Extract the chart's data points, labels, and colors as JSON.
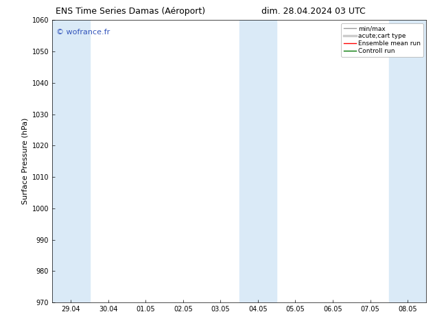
{
  "title_left": "ENS Time Series Damas (Aéroport)",
  "title_right": "dim. 28.04.2024 03 UTC",
  "ylabel": "Surface Pressure (hPa)",
  "ylim": [
    970,
    1060
  ],
  "yticks": [
    970,
    980,
    990,
    1000,
    1010,
    1020,
    1030,
    1040,
    1050,
    1060
  ],
  "xtick_labels": [
    "29.04",
    "30.04",
    "01.05",
    "02.05",
    "03.05",
    "04.05",
    "05.05",
    "06.05",
    "07.05",
    "08.05"
  ],
  "xtick_positions": [
    0,
    1,
    2,
    3,
    4,
    5,
    6,
    7,
    8,
    9
  ],
  "xlim": [
    -0.5,
    9.5
  ],
  "shaded_bands": [
    {
      "x_start": -0.5,
      "x_end": 0.5,
      "color": "#daeaf7"
    },
    {
      "x_start": 4.5,
      "x_end": 5.5,
      "color": "#daeaf7"
    },
    {
      "x_start": 8.5,
      "x_end": 9.5,
      "color": "#daeaf7"
    }
  ],
  "watermark_text": "© wofrance.fr",
  "watermark_color": "#3355bb",
  "bg_color": "#ffffff",
  "legend_items": [
    {
      "label": "min/max",
      "color": "#999999",
      "lw": 1.0,
      "ls": "-"
    },
    {
      "label": "acute;cart type",
      "color": "#cccccc",
      "lw": 2.5,
      "ls": "-"
    },
    {
      "label": "Ensemble mean run",
      "color": "#ff0000",
      "lw": 1.0,
      "ls": "-"
    },
    {
      "label": "Controll run",
      "color": "#007700",
      "lw": 1.0,
      "ls": "-"
    }
  ],
  "title_fontsize": 9,
  "tick_fontsize": 7,
  "ylabel_fontsize": 8,
  "watermark_fontsize": 8,
  "legend_fontsize": 6.5
}
